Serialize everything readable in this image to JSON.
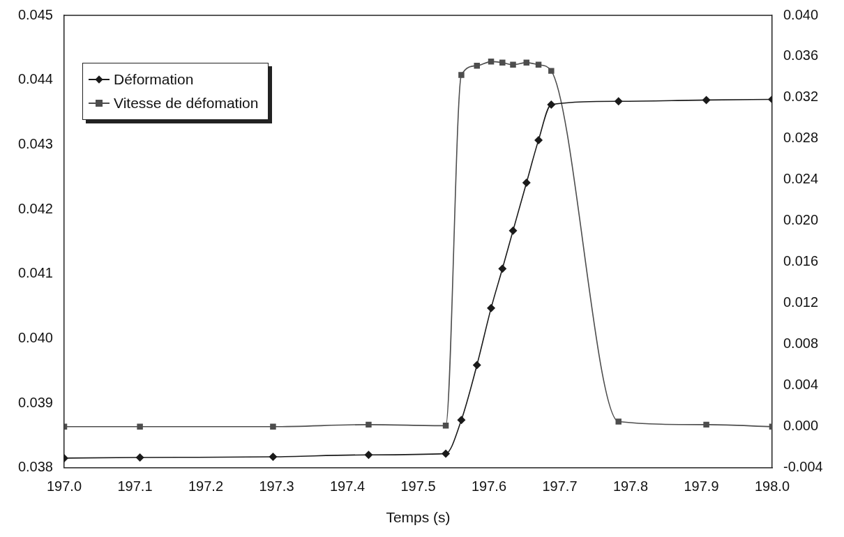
{
  "chart_data": {
    "type": "line",
    "xlabel": "Temps (s)",
    "xlim": [
      197.0,
      198.0
    ],
    "xticks": [
      {
        "value": 197.0,
        "label": "197.0"
      },
      197.1,
      197.2,
      197.3,
      197.4,
      197.5,
      197.6,
      197.7,
      197.8,
      197.9,
      {
        "value": 198.0,
        "label": "198.0"
      }
    ],
    "ylim": [
      0.038,
      0.045
    ],
    "yticks": [
      0.038,
      0.039,
      {
        "value": 0.04,
        "label": "0.040"
      },
      0.041,
      0.042,
      0.043,
      0.044,
      0.045
    ],
    "y2lim": [
      -0.004,
      0.04
    ],
    "y2ticks": [
      -0.004,
      {
        "value": 0,
        "label": "0.000"
      },
      0.004,
      0.008,
      0.012,
      0.016,
      {
        "value": 0.02,
        "label": "0.020"
      },
      0.024,
      0.028,
      0.032,
      0.036,
      {
        "value": 0.04,
        "label": "0.040"
      }
    ],
    "legend": "top left",
    "grid": false,
    "line_style": "solid",
    "series": [
      {
        "name": "Déformation",
        "color": "#1a1a1a",
        "marker": "diamond",
        "x": [
          197.0,
          197.107,
          197.295,
          197.43,
          197.539,
          197.561,
          197.583,
          197.603,
          197.619,
          197.634,
          197.653,
          197.67,
          197.688,
          197.783,
          197.907,
          198.0
        ],
        "values": [
          0.03815,
          0.03816,
          0.03817,
          0.0382,
          0.03822,
          0.03874,
          0.03959,
          0.04047,
          0.04108,
          0.04167,
          0.04241,
          0.04307,
          0.04362,
          0.04367,
          0.04369,
          0.0437
        ]
      },
      {
        "name": "Vitesse de défomation",
        "color": "#4d4d4d",
        "marker": "square",
        "axis": "y2",
        "x": [
          197.0,
          197.107,
          197.295,
          197.43,
          197.539,
          197.561,
          197.583,
          197.603,
          197.619,
          197.634,
          197.653,
          197.67,
          197.688,
          197.783,
          197.907,
          198.0
        ],
        "values": [
          0.0,
          0.0,
          0.0,
          0.0002,
          0.0001,
          0.0342,
          0.0351,
          0.0355,
          0.0354,
          0.0352,
          0.0354,
          0.0352,
          0.0346,
          0.0005,
          0.0002,
          0.0
        ]
      }
    ]
  }
}
